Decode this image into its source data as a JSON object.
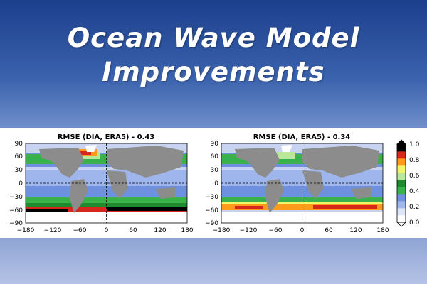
{
  "title": {
    "line1": "Ocean Wave Model",
    "line2": "Improvements"
  },
  "colors": {
    "land": "#8c8c8c",
    "ice": "#ffffff",
    "ocean_low": "#c7d3f0",
    "ocean_mid": "#5c7fd6",
    "green_dark": "#1f8a2e",
    "green_mid": "#3ab24a",
    "green_light": "#b9e89a",
    "orange": "#ff9a1a",
    "red": "#d7261e",
    "black": "#000000"
  },
  "panels": [
    {
      "title": "RMSE (DIA, ERA5) - 0.43",
      "x_ticks": [
        "−180",
        "−120",
        "−60",
        "0",
        "60",
        "120",
        "180"
      ],
      "y_ticks": [
        "90",
        "60",
        "30",
        "0",
        "−30",
        "−60",
        "−90"
      ],
      "southern_band": "black-red"
    },
    {
      "title": "RMSE (DIA, ERA5) - 0.34",
      "x_ticks": [
        "−180",
        "−120",
        "−60",
        "0",
        "60",
        "120",
        "180"
      ],
      "y_ticks": [
        "90",
        "60",
        "30",
        "0",
        "−30",
        "−60",
        "−90"
      ],
      "southern_band": "orange-red"
    }
  ],
  "colorbar": {
    "ticks": [
      "1.0",
      "0.8",
      "0.6",
      "0.4",
      "0.2",
      "0.0"
    ],
    "levels": [
      "#ffffff",
      "#dde6f8",
      "#9fb6ec",
      "#6f8fdf",
      "#3ab24a",
      "#1f8a2e",
      "#b9e89a",
      "#f3f36b",
      "#ff9a1a",
      "#d7261e",
      "#000000"
    ]
  }
}
